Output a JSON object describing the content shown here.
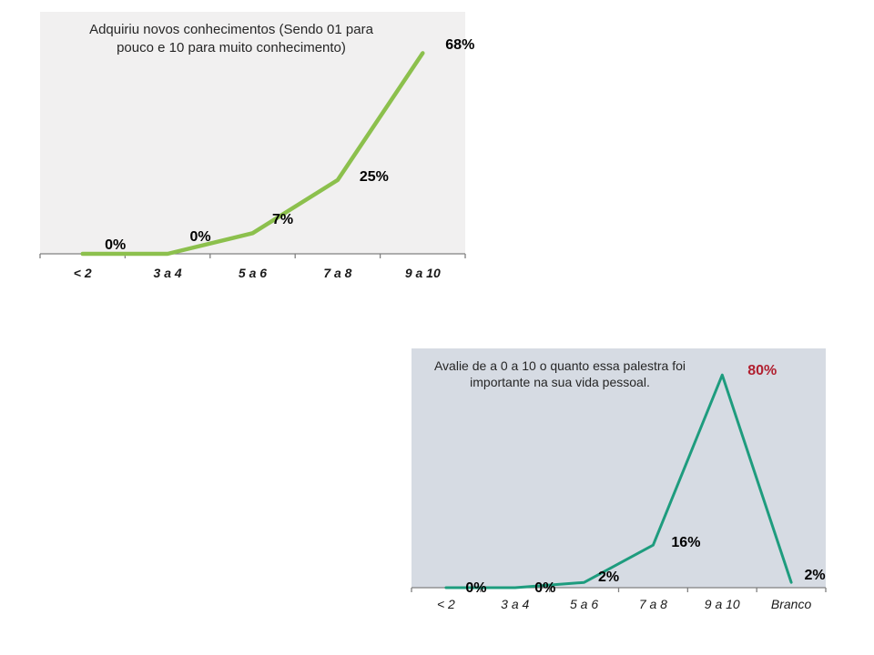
{
  "slide": {
    "background": "#ffffff",
    "description": "Survey results slide with two line charts"
  },
  "chart_data": [
    {
      "type": "line",
      "title": "Adquiriu novos conhecimentos (Sendo 01 para\npouco e 10 para muito conhecimento)",
      "categories": [
        "< 2",
        "3 a 4",
        "5 a 6",
        "7 a 8",
        "9 a 10"
      ],
      "values": [
        0,
        0,
        7,
        25,
        68
      ],
      "data_labels": [
        "0%",
        "0%",
        "7%",
        "25%",
        "68%"
      ],
      "data_label_colors": [
        "#000000",
        "#000000",
        "#000000",
        "#000000",
        "#000000"
      ],
      "ylim": [
        0,
        82
      ],
      "grid": false,
      "legend": "none",
      "colors": {
        "line": "#8CC04D",
        "plot_bg": "#F1F0F0",
        "title": "#262626",
        "data_label": "#000000",
        "axis": "#808080"
      }
    },
    {
      "type": "line",
      "title": "Avalie de a 0 a 10 o quanto essa palestra foi\nimportante  na sua vida pessoal.",
      "categories": [
        "< 2",
        "3 a 4",
        "5 a 6",
        "7 a 8",
        "9 a 10",
        "Branco"
      ],
      "values": [
        0,
        0,
        2,
        16,
        80,
        2
      ],
      "data_labels": [
        "0%",
        "0%",
        "2%",
        "16%",
        "80%",
        "2%"
      ],
      "data_label_colors": [
        "#000000",
        "#000000",
        "#000000",
        "#000000",
        "#B12030",
        "#000000"
      ],
      "ylim": [
        0,
        90
      ],
      "grid": false,
      "legend": "none",
      "colors": {
        "line": "#1E9C7E",
        "plot_bg": "#D6DBE3",
        "title": "#262626",
        "data_label": "#000000",
        "axis": "#808080"
      }
    }
  ]
}
